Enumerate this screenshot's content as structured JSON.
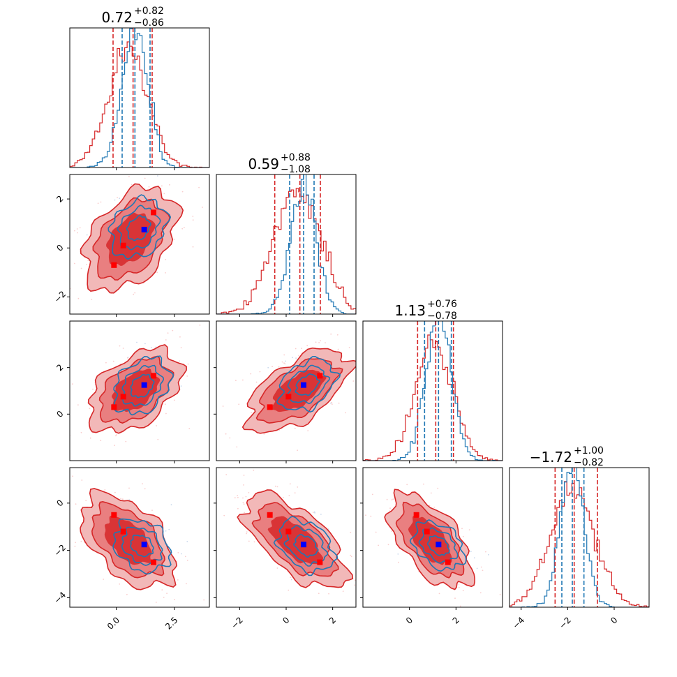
{
  "chart_data": {
    "type": "corner",
    "n_params": 4,
    "colors": {
      "primary": "#d62728",
      "secondary": "#1f77b4",
      "truth": "#0000ff",
      "samples": "#ff0000"
    },
    "axes": [
      {
        "range": [
          -2.0,
          4.0
        ],
        "ticks": [
          0.0,
          2.5
        ],
        "tick_labels": [
          "0.0",
          "2.5"
        ]
      },
      {
        "range": [
          -3.0,
          3.0
        ],
        "ticks": [
          -2,
          0,
          2
        ],
        "tick_labels": [
          "−2",
          "0",
          "2"
        ]
      },
      {
        "range": [
          -2.0,
          4.0
        ],
        "ticks": [
          0,
          2
        ],
        "tick_labels": [
          "0",
          "2"
        ]
      },
      {
        "range": [
          -4.5,
          1.5
        ],
        "ticks": [
          -4,
          -2,
          0
        ],
        "tick_labels": [
          "−4",
          "−2",
          "0"
        ]
      }
    ],
    "row_axes": [
      null,
      {
        "range": [
          -2.7,
          3.0
        ],
        "ticks": [
          -2,
          0,
          2
        ],
        "tick_labels": [
          "−2",
          "0",
          "2"
        ]
      },
      {
        "range": [
          -2.0,
          4.0
        ],
        "ticks": [
          0,
          2
        ],
        "tick_labels": [
          "0",
          "2"
        ]
      },
      {
        "range": [
          -4.4,
          1.5
        ],
        "ticks": [
          -4,
          -2,
          0
        ],
        "tick_labels": [
          "−4",
          "−2",
          "0"
        ]
      }
    ],
    "titles": [
      {
        "value": "0.72",
        "plus": "+0.82",
        "minus": "−0.86"
      },
      {
        "value": "0.59",
        "plus": "+0.88",
        "minus": "−1.08"
      },
      {
        "value": "1.13",
        "plus": "+0.76",
        "minus": "−0.78"
      },
      {
        "value": "−1.72",
        "plus": "+1.00",
        "minus": "−0.82"
      }
    ],
    "marginals": [
      {
        "primary": {
          "mean": 0.5,
          "sd": 0.85,
          "quantiles": [
            -0.14,
            0.72,
            1.54
          ]
        },
        "secondary": {
          "mean": 0.8,
          "sd": 0.55,
          "quantiles": [
            0.25,
            0.8,
            1.45
          ]
        }
      },
      {
        "primary": {
          "mean": 0.5,
          "sd": 1.0,
          "quantiles": [
            -0.49,
            0.59,
            1.47
          ]
        },
        "secondary": {
          "mean": 0.75,
          "sd": 0.55,
          "quantiles": [
            0.15,
            0.75,
            1.2
          ]
        }
      },
      {
        "primary": {
          "mean": 1.05,
          "sd": 0.8,
          "quantiles": [
            0.35,
            1.13,
            1.89
          ]
        },
        "secondary": {
          "mean": 1.25,
          "sd": 0.55,
          "quantiles": [
            0.65,
            1.25,
            1.8
          ]
        }
      },
      {
        "primary": {
          "mean": -1.8,
          "sd": 0.95,
          "quantiles": [
            -2.54,
            -1.72,
            -0.72
          ]
        },
        "secondary": {
          "mean": -1.8,
          "sd": 0.5,
          "quantiles": [
            -2.25,
            -1.8,
            -1.3
          ]
        }
      }
    ],
    "truth": [
      1.2,
      0.75,
      1.25,
      -1.75
    ],
    "sample_points": [
      [
        -0.1,
        -0.7,
        0.3,
        -0.5
      ],
      [
        0.3,
        0.1,
        0.75,
        -1.2
      ],
      [
        1.6,
        1.45,
        1.65,
        -2.5
      ]
    ],
    "joint": {
      "1,0": {
        "primary": {
          "cx": 0.6,
          "cy": 0.35,
          "sx": 0.95,
          "sy": 1.0,
          "rho": 0.42
        },
        "secondary": {
          "cx": 0.95,
          "cy": 0.8,
          "sx": 0.6,
          "sy": 0.6,
          "rho": 0.25
        }
      },
      "2,0": {
        "primary": {
          "cx": 0.8,
          "cy": 1.0,
          "sx": 0.95,
          "sy": 0.85,
          "rho": 0.45
        },
        "secondary": {
          "cx": 1.1,
          "cy": 1.2,
          "sx": 0.6,
          "sy": 0.6,
          "rho": 0.3
        }
      },
      "2,1": {
        "primary": {
          "cx": 0.5,
          "cy": 1.0,
          "sx": 1.05,
          "sy": 0.85,
          "rho": 0.6
        },
        "secondary": {
          "cx": 0.9,
          "cy": 1.25,
          "sx": 0.6,
          "sy": 0.55,
          "rho": 0.35
        }
      },
      "3,0": {
        "primary": {
          "cx": 0.5,
          "cy": -1.6,
          "sx": 0.95,
          "sy": 0.95,
          "rho": -0.5
        },
        "secondary": {
          "cx": 1.1,
          "cy": -1.8,
          "sx": 0.6,
          "sy": 0.55,
          "rho": -0.25
        }
      },
      "3,1": {
        "primary": {
          "cx": 0.4,
          "cy": -1.6,
          "sx": 1.05,
          "sy": 0.95,
          "rho": -0.65
        },
        "secondary": {
          "cx": 0.85,
          "cy": -1.8,
          "sx": 0.6,
          "sy": 0.55,
          "rho": -0.35
        }
      },
      "3,2": {
        "primary": {
          "cx": 0.9,
          "cy": -1.6,
          "sx": 0.85,
          "sy": 0.95,
          "rho": -0.6
        },
        "secondary": {
          "cx": 1.25,
          "cy": -1.8,
          "sx": 0.55,
          "sy": 0.5,
          "rho": -0.35
        }
      }
    },
    "grid": false
  }
}
